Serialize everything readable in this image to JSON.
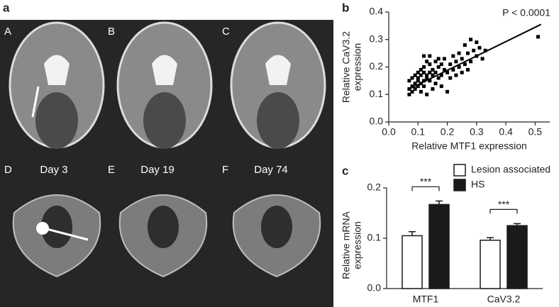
{
  "panel_labels": [
    "a",
    "b",
    "c"
  ],
  "image_labels": [
    "A",
    "B",
    "C",
    "D",
    "E",
    "F"
  ],
  "image_captions": [
    "Day 3",
    "Day 19",
    "Day 74"
  ],
  "chart_data": [
    {
      "type": "scatter",
      "annotation": "P < 0.0001",
      "x_label": "Relative MTF1 expression",
      "y_label": [
        "Relative CaV3.2",
        "expression"
      ],
      "color": "#000000",
      "x": [
        0.07,
        0.07,
        0.07,
        0.08,
        0.08,
        0.08,
        0.09,
        0.09,
        0.09,
        0.1,
        0.1,
        0.1,
        0.1,
        0.11,
        0.11,
        0.11,
        0.11,
        0.12,
        0.12,
        0.12,
        0.12,
        0.12,
        0.13,
        0.13,
        0.13,
        0.13,
        0.14,
        0.14,
        0.14,
        0.14,
        0.15,
        0.15,
        0.15,
        0.16,
        0.16,
        0.16,
        0.17,
        0.17,
        0.17,
        0.18,
        0.18,
        0.18,
        0.19,
        0.19,
        0.2,
        0.2,
        0.21,
        0.21,
        0.22,
        0.22,
        0.23,
        0.23,
        0.24,
        0.24,
        0.25,
        0.25,
        0.26,
        0.26,
        0.27,
        0.27,
        0.28,
        0.28,
        0.29,
        0.3,
        0.3,
        0.31,
        0.32,
        0.33,
        0.51
      ],
      "values": [
        0.1,
        0.12,
        0.15,
        0.13,
        0.16,
        0.11,
        0.14,
        0.17,
        0.12,
        0.15,
        0.18,
        0.13,
        0.16,
        0.11,
        0.17,
        0.14,
        0.19,
        0.15,
        0.18,
        0.2,
        0.13,
        0.24,
        0.16,
        0.22,
        0.17,
        0.1,
        0.18,
        0.15,
        0.24,
        0.21,
        0.17,
        0.19,
        0.12,
        0.18,
        0.22,
        0.14,
        0.2,
        0.16,
        0.23,
        0.17,
        0.21,
        0.13,
        0.19,
        0.23,
        0.11,
        0.18,
        0.21,
        0.16,
        0.24,
        0.19,
        0.17,
        0.22,
        0.2,
        0.25,
        0.18,
        0.23,
        0.28,
        0.21,
        0.25,
        0.19,
        0.3,
        0.22,
        0.26,
        0.24,
        0.29,
        0.27,
        0.23,
        0.26,
        0.31
      ],
      "trend_line": {
        "x": [
          0.07,
          0.52
        ],
        "y": [
          0.12,
          0.355
        ]
      },
      "xlim": [
        0,
        0.55
      ],
      "xticks": [
        {
          "value": 0,
          "label": "0.0"
        },
        0.1,
        0.2,
        0.3,
        0.4,
        0.5
      ],
      "ylim": [
        0,
        0.4
      ],
      "yticks": [
        {
          "value": 0,
          "label": "0.0"
        },
        0.1,
        0.2,
        0.3,
        0.4
      ]
    },
    {
      "type": "bar",
      "y_label": [
        "Relative mRNA",
        "expression"
      ],
      "categories": [
        "MTF1",
        "CaV3.2"
      ],
      "series": [
        {
          "name": "Lesion associated",
          "color": "#ffffff",
          "values": [
            0.105,
            0.096
          ],
          "errors": [
            0.008,
            0.005
          ]
        },
        {
          "name": "HS",
          "color": "#1a1a1a",
          "values": [
            0.167,
            0.125
          ],
          "errors": [
            0.007,
            0.004
          ]
        }
      ],
      "annotations": [
        "***",
        "***"
      ],
      "ylim": [
        0,
        0.2
      ],
      "yticks": [
        {
          "value": 0,
          "label": "0.0"
        },
        0.1,
        0.2
      ]
    }
  ]
}
